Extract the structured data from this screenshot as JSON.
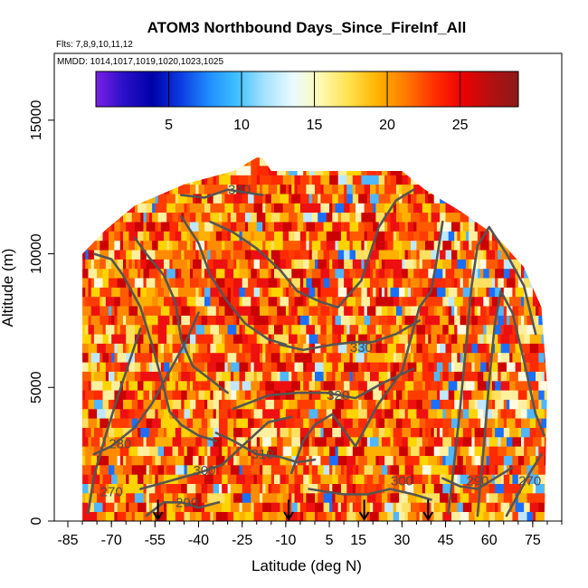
{
  "chart_data": {
    "type": "heatmap",
    "title": "ATOM3 Northbound Days_Since_FireInf_All",
    "flights_label": "Flts: 7,8,9,10,11,12",
    "dates_label": "MMDD: 1014,1017,1019,1020,1023,1025",
    "xlabel": "Latitude (deg N)",
    "ylabel": "Altitude (m)",
    "xlim": [
      -85,
      85
    ],
    "ylim": [
      0,
      17500
    ],
    "x_ticks": [
      -85,
      -70,
      -55,
      -40,
      -25,
      -10,
      5,
      15,
      30,
      45,
      60,
      75
    ],
    "y_ticks": [
      0,
      5000,
      10000,
      15000
    ],
    "colorbar": {
      "range": [
        0,
        29
      ],
      "ticks": [
        5,
        10,
        15,
        20,
        25
      ],
      "colors": [
        "#7a1fe6",
        "#2a10c8",
        "#0000a8",
        "#0a3be0",
        "#1f8cff",
        "#3fc0ff",
        "#a6e3ff",
        "#eafbff",
        "#fff8b0",
        "#ffe14a",
        "#ffb300",
        "#ff7a00",
        "#ff3000",
        "#ee0000",
        "#b51010",
        "#8a1a1a"
      ]
    },
    "coverage_envelope": [
      [
        -80,
        0
      ],
      [
        -80,
        10000
      ],
      [
        -72,
        10900
      ],
      [
        -62,
        11800
      ],
      [
        -45,
        12600
      ],
      [
        -28,
        13100
      ],
      [
        -20,
        13600
      ],
      [
        -18,
        13600
      ],
      [
        -15,
        13100
      ],
      [
        30,
        13100
      ],
      [
        38,
        12400
      ],
      [
        50,
        11600
      ],
      [
        62,
        10700
      ],
      [
        72,
        9500
      ],
      [
        78,
        8000
      ],
      [
        80,
        5000
      ],
      [
        79,
        0
      ]
    ],
    "theta_contours": [
      {
        "label": "270",
        "points": [
          [
            -78,
            300
          ],
          [
            -76,
            1700
          ],
          [
            -72,
            3200
          ],
          [
            -68,
            4600
          ],
          [
            -64,
            5900
          ],
          [
            -60,
            7200
          ]
        ],
        "label_at": [
          -70,
          1100
        ]
      },
      {
        "label": "280",
        "points": [
          [
            -76,
            2500
          ],
          [
            -70,
            2800
          ],
          [
            -62,
            3500
          ],
          [
            -56,
            4400
          ],
          [
            -50,
            5600
          ],
          [
            -44,
            6800
          ],
          [
            -40,
            7800
          ]
        ],
        "label_at": [
          -67,
          2900
        ]
      },
      {
        "label": "290",
        "points": [
          [
            -58,
            200
          ],
          [
            -52,
            700
          ],
          [
            -46,
            700
          ],
          [
            -40,
            500
          ],
          [
            -33,
            700
          ]
        ],
        "label_at": [
          -44,
          700
        ]
      },
      {
        "label": "300",
        "points": [
          [
            -60,
            1200
          ],
          [
            -50,
            1500
          ],
          [
            -40,
            1800
          ],
          [
            -32,
            2100
          ],
          [
            -24,
            2900
          ],
          [
            -16,
            3700
          ],
          [
            -8,
            3900
          ]
        ],
        "label_at": [
          -38,
          1900
        ]
      },
      {
        "label": "310",
        "points": [
          [
            -34,
            3300
          ],
          [
            -28,
            3000
          ],
          [
            -20,
            2500
          ],
          [
            -12,
            2400
          ],
          [
            -6,
            2200
          ],
          [
            0,
            2300
          ]
        ],
        "label_at": [
          -18,
          2500
        ]
      },
      {
        "label": "320",
        "points": [
          [
            -28,
            4200
          ],
          [
            -16,
            4700
          ],
          [
            -6,
            4800
          ],
          [
            4,
            4800
          ],
          [
            14,
            4600
          ],
          [
            24,
            5200
          ],
          [
            34,
            5700
          ]
        ],
        "label_at": [
          8,
          4700
        ]
      },
      {
        "label": "330",
        "points": [
          [
            -12,
            6600
          ],
          [
            -4,
            6400
          ],
          [
            6,
            6600
          ],
          [
            14,
            6700
          ],
          [
            20,
            6700
          ],
          [
            28,
            7000
          ],
          [
            36,
            7500
          ]
        ],
        "label_at": [
          16,
          6500
        ]
      },
      {
        "label": "340",
        "points": [
          [
            -46,
            12200
          ],
          [
            -38,
            12100
          ],
          [
            -30,
            12400
          ],
          [
            -24,
            12300
          ],
          [
            -18,
            12200
          ]
        ],
        "label_at": [
          -26,
          12400
        ]
      },
      {
        "label": "300",
        "points": [
          [
            -2,
            1200
          ],
          [
            10,
            1000
          ],
          [
            18,
            1000
          ],
          [
            26,
            1200
          ],
          [
            34,
            1000
          ],
          [
            40,
            800
          ]
        ],
        "label_at": [
          30,
          1500
        ]
      },
      {
        "label": "290",
        "points": [
          [
            44,
            1600
          ],
          [
            50,
            1300
          ],
          [
            56,
            1200
          ],
          [
            62,
            1600
          ],
          [
            68,
            2000
          ]
        ],
        "label_at": [
          56,
          1500
        ]
      },
      {
        "label": "270",
        "points": [
          [
            66,
            200
          ],
          [
            70,
            1000
          ],
          [
            74,
            1800
          ],
          [
            78,
            2500
          ]
        ],
        "label_at": [
          74,
          1500
        ]
      },
      {
        "label": "",
        "points": [
          [
            -76,
            10000
          ],
          [
            -70,
            9800
          ],
          [
            -66,
            9200
          ],
          [
            -60,
            8000
          ],
          [
            -56,
            6600
          ],
          [
            -52,
            5000
          ],
          [
            -50,
            4100
          ],
          [
            -46,
            3600
          ],
          [
            -40,
            3200
          ],
          [
            -34,
            3000
          ]
        ],
        "label_at": null
      },
      {
        "label": "",
        "points": [
          [
            -62,
            10600
          ],
          [
            -58,
            10000
          ],
          [
            -52,
            9200
          ],
          [
            -48,
            8200
          ],
          [
            -46,
            6800
          ],
          [
            -42,
            5800
          ],
          [
            -36,
            5300
          ],
          [
            -30,
            4800
          ]
        ],
        "label_at": null
      },
      {
        "label": "",
        "points": [
          [
            -46,
            11400
          ],
          [
            -40,
            10400
          ],
          [
            -36,
            9200
          ],
          [
            -30,
            8200
          ],
          [
            -24,
            7400
          ],
          [
            -16,
            6800
          ],
          [
            -10,
            6600
          ]
        ],
        "label_at": null
      },
      {
        "label": "",
        "points": [
          [
            -36,
            11200
          ],
          [
            -28,
            10800
          ],
          [
            -20,
            10200
          ],
          [
            -12,
            9400
          ],
          [
            -6,
            8600
          ],
          [
            2,
            8200
          ],
          [
            8,
            8000
          ],
          [
            16,
            9000
          ],
          [
            22,
            11000
          ],
          [
            28,
            12000
          ],
          [
            34,
            12400
          ]
        ],
        "label_at": null
      },
      {
        "label": "",
        "points": [
          [
            -8,
            1800
          ],
          [
            -4,
            3000
          ],
          [
            0,
            3600
          ],
          [
            6,
            4000
          ],
          [
            10,
            3400
          ],
          [
            14,
            2800
          ],
          [
            18,
            3600
          ],
          [
            22,
            4400
          ],
          [
            30,
            5600
          ],
          [
            36,
            8000
          ],
          [
            40,
            8600
          ],
          [
            42,
            9800
          ],
          [
            44,
            11200
          ]
        ],
        "label_at": null
      },
      {
        "label": "",
        "points": [
          [
            46,
            300
          ],
          [
            48,
            2200
          ],
          [
            50,
            4200
          ],
          [
            52,
            6500
          ],
          [
            54,
            8800
          ],
          [
            56,
            10300
          ],
          [
            60,
            11000
          ],
          [
            66,
            10000
          ],
          [
            72,
            8800
          ],
          [
            76,
            7000
          ]
        ],
        "label_at": null
      },
      {
        "label": "",
        "points": [
          [
            56,
            200
          ],
          [
            58,
            2600
          ],
          [
            60,
            5200
          ],
          [
            62,
            7400
          ],
          [
            64,
            8600
          ],
          [
            68,
            7800
          ],
          [
            72,
            6000
          ],
          [
            76,
            4000
          ],
          [
            79,
            3200
          ]
        ],
        "label_at": null
      }
    ],
    "flight_markers": [
      {
        "lat": -54,
        "alt_top": 800
      },
      {
        "lat": -9,
        "alt_top": 800
      },
      {
        "lat": 17,
        "alt_top": 800
      },
      {
        "lat": 39,
        "alt_top": 800
      }
    ]
  }
}
